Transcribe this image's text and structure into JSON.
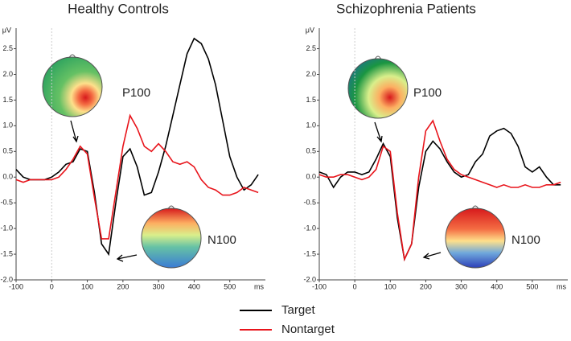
{
  "chart_data": [
    {
      "type": "line",
      "title": "Healthy Controls",
      "y_label": "μV",
      "x_label": "ms",
      "annotations": [
        "P100",
        "N100"
      ],
      "x": [
        -100,
        -80,
        -60,
        -40,
        -20,
        0,
        20,
        40,
        60,
        80,
        100,
        120,
        140,
        160,
        180,
        200,
        220,
        240,
        260,
        280,
        300,
        320,
        340,
        360,
        380,
        400,
        420,
        440,
        460,
        480,
        500,
        520,
        540,
        560,
        580
      ],
      "series": [
        {
          "name": "Target",
          "color": "#000000",
          "values": [
            0.15,
            0.0,
            -0.05,
            -0.05,
            -0.05,
            0.0,
            0.1,
            0.25,
            0.3,
            0.55,
            0.5,
            -0.3,
            -1.3,
            -1.5,
            -0.5,
            0.4,
            0.55,
            0.2,
            -0.35,
            -0.3,
            0.1,
            0.6,
            1.2,
            1.8,
            2.4,
            2.7,
            2.6,
            2.3,
            1.8,
            1.1,
            0.4,
            0.0,
            -0.25,
            -0.15,
            0.05
          ]
        },
        {
          "name": "Nontarget",
          "color": "#e8141b",
          "values": [
            -0.05,
            -0.1,
            -0.05,
            -0.05,
            -0.05,
            -0.05,
            0.0,
            0.15,
            0.35,
            0.6,
            0.45,
            -0.4,
            -1.2,
            -1.2,
            -0.3,
            0.6,
            1.2,
            0.95,
            0.6,
            0.5,
            0.65,
            0.5,
            0.3,
            0.25,
            0.3,
            0.2,
            -0.05,
            -0.2,
            -0.25,
            -0.35,
            -0.35,
            -0.3,
            -0.2,
            -0.25,
            -0.3
          ]
        }
      ],
      "xlim": [
        -100,
        600
      ],
      "xticks": [
        -100,
        0,
        100,
        200,
        300,
        400,
        500
      ],
      "ylim": [
        -2.0,
        2.9
      ],
      "yticks": [
        {
          "value": -2,
          "label": "-2.0"
        },
        -1.5,
        {
          "value": -1,
          "label": "-1.0"
        },
        -0.5,
        {
          "value": 0,
          "label": "0.0"
        },
        0.5,
        {
          "value": 1,
          "label": "1.0"
        },
        1.5,
        {
          "value": 2,
          "label": "2.0"
        },
        2.5
      ]
    },
    {
      "type": "line",
      "title": "Schizophrenia Patients",
      "y_label": "μV",
      "x_label": "ms",
      "annotations": [
        "P100",
        "N100"
      ],
      "x": [
        -100,
        -80,
        -60,
        -40,
        -20,
        0,
        20,
        40,
        60,
        80,
        100,
        120,
        140,
        160,
        180,
        200,
        220,
        240,
        260,
        280,
        300,
        320,
        340,
        360,
        380,
        400,
        420,
        440,
        460,
        480,
        500,
        520,
        540,
        560,
        580
      ],
      "series": [
        {
          "color": "#000000",
          "values": [
            0.1,
            0.05,
            -0.2,
            0.0,
            0.1,
            0.1,
            0.05,
            0.1,
            0.35,
            0.65,
            0.4,
            -0.8,
            -1.6,
            -1.3,
            -0.2,
            0.5,
            0.7,
            0.55,
            0.3,
            0.1,
            0.0,
            0.05,
            0.3,
            0.45,
            0.8,
            0.9,
            0.95,
            0.85,
            0.6,
            0.2,
            0.1,
            0.2,
            0.0,
            -0.15,
            -0.15
          ]
        },
        {
          "color": "#e8141b",
          "values": [
            0.05,
            0.0,
            0.0,
            0.05,
            0.05,
            0.0,
            -0.05,
            0.0,
            0.15,
            0.6,
            0.5,
            -0.7,
            -1.6,
            -1.3,
            0.0,
            0.9,
            1.1,
            0.7,
            0.35,
            0.15,
            0.05,
            0.0,
            -0.05,
            -0.1,
            -0.15,
            -0.2,
            -0.15,
            -0.2,
            -0.2,
            -0.15,
            -0.2,
            -0.2,
            -0.15,
            -0.15,
            -0.1
          ]
        }
      ],
      "xlim": [
        -100,
        600
      ],
      "xticks": [
        -100,
        0,
        100,
        200,
        300,
        400,
        500
      ],
      "ylim": [
        -2.0,
        2.9
      ],
      "yticks": [
        {
          "value": -2,
          "label": "-2.0"
        },
        -1.5,
        {
          "value": -1,
          "label": "-1.0"
        },
        -0.5,
        {
          "value": 0,
          "label": "0.0"
        },
        0.5,
        {
          "value": 1,
          "label": "1.0"
        },
        1.5,
        {
          "value": 2,
          "label": "2.0"
        },
        2.5
      ]
    }
  ]
}
